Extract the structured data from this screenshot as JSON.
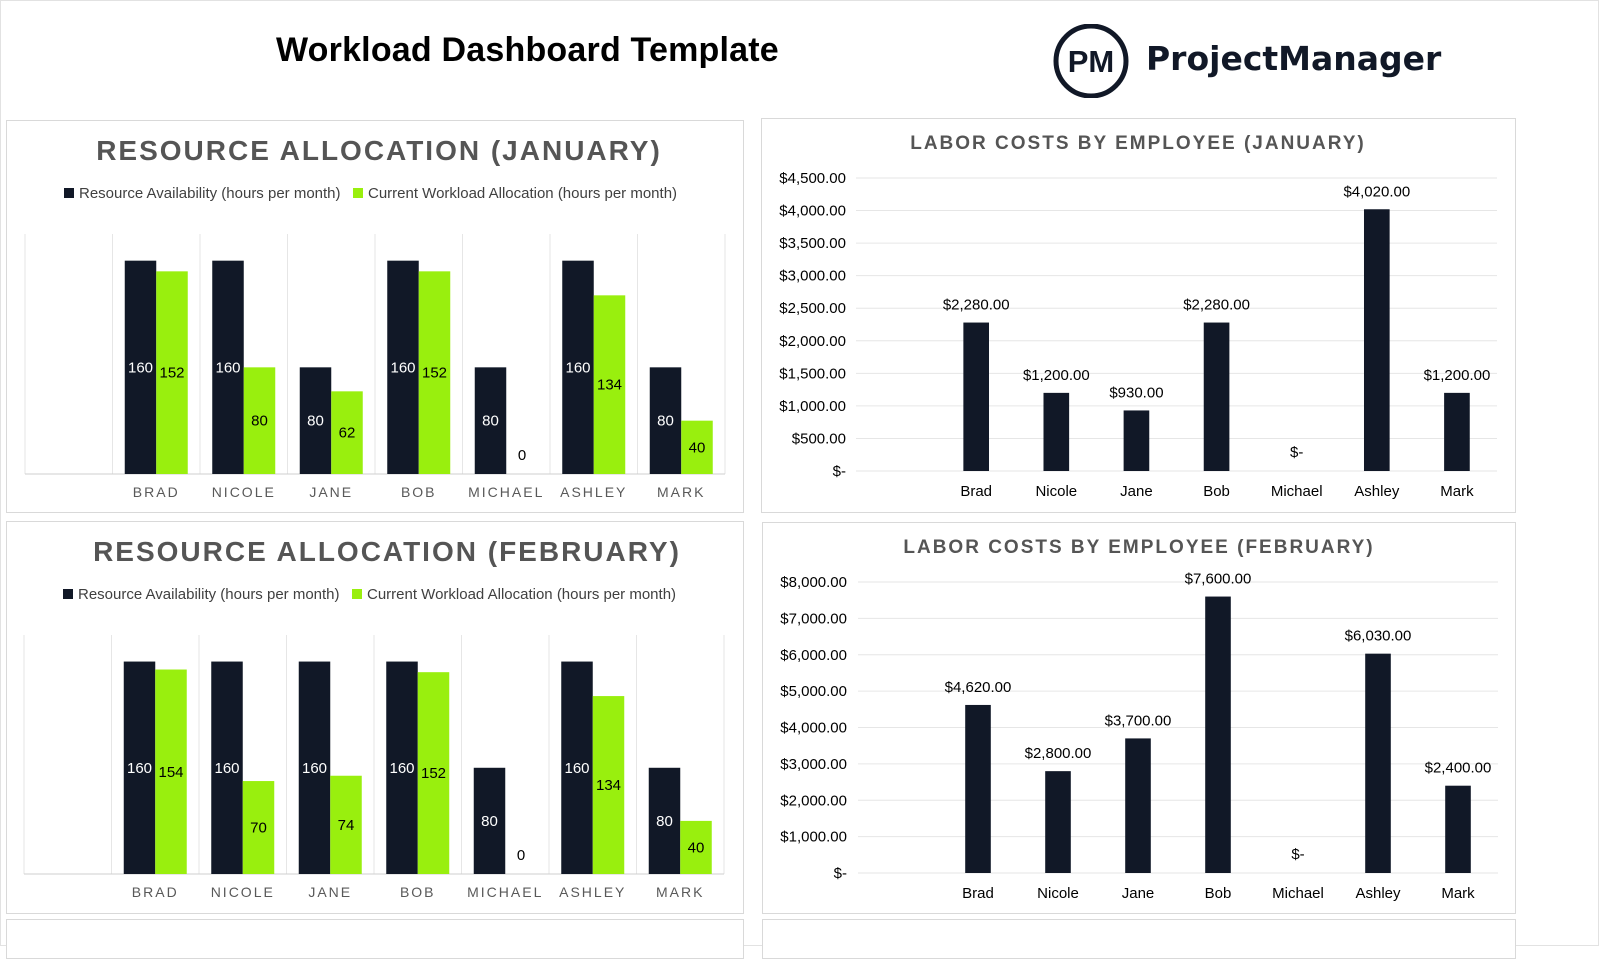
{
  "page": {
    "title": "Workload Dashboard Template",
    "brand": {
      "monogram": "PM",
      "name": "ProjectManager"
    }
  },
  "colors": {
    "availability": "#111827",
    "workload": "#99ef0e",
    "labor_bar": "#111827",
    "axis": "#cfcfcf",
    "grid": "#e6e6e6",
    "title_gray": "#555555"
  },
  "chart_data": [
    {
      "id": "alloc-jan",
      "type": "bar",
      "title": "RESOURCE ALLOCATION (JANUARY)",
      "categories": [
        "BRAD",
        "NICOLE",
        "JANE",
        "BOB",
        "MICHAEL",
        "ASHLEY",
        "MARK"
      ],
      "series": [
        {
          "name": "Resource Availability (hours per month)",
          "values": [
            160,
            160,
            80,
            160,
            80,
            160,
            80
          ]
        },
        {
          "name": "Current Workload Allocation (hours per month)",
          "values": [
            152,
            80,
            62,
            152,
            0,
            134,
            40
          ]
        }
      ],
      "ylim": [
        0,
        180
      ],
      "legend": "top",
      "grid": false,
      "data_labels": true
    },
    {
      "id": "alloc-feb",
      "type": "bar",
      "title": "RESOURCE ALLOCATION (FEBRUARY)",
      "categories": [
        "BRAD",
        "NICOLE",
        "JANE",
        "BOB",
        "MICHAEL",
        "ASHLEY",
        "MARK"
      ],
      "series": [
        {
          "name": "Resource Availability (hours per month)",
          "values": [
            160,
            160,
            160,
            160,
            80,
            160,
            80
          ]
        },
        {
          "name": "Current Workload Allocation (hours per month)",
          "values": [
            154,
            70,
            74,
            152,
            0,
            134,
            40
          ]
        }
      ],
      "ylim": [
        0,
        180
      ],
      "legend": "top",
      "grid": false,
      "data_labels": true
    },
    {
      "id": "labor-jan",
      "type": "bar",
      "title": "LABOR COSTS BY EMPLOYEE (JANUARY)",
      "categories": [
        "Brad",
        "Nicole",
        "Jane",
        "Bob",
        "Michael",
        "Ashley",
        "Mark"
      ],
      "values": [
        2280,
        1200,
        930,
        2280,
        0,
        4020,
        1200
      ],
      "value_labels": [
        "$2,280.00",
        "$1,200.00",
        "$930.00",
        "$2,280.00",
        "$-",
        "$4,020.00",
        "$1,200.00"
      ],
      "ylim": [
        0,
        4500
      ],
      "yticks": [
        0,
        500,
        1000,
        1500,
        2000,
        2500,
        3000,
        3500,
        4000,
        4500
      ],
      "ytick_labels": [
        "$-",
        "$500.00",
        "$1,000.00",
        "$1,500.00",
        "$2,000.00",
        "$2,500.00",
        "$3,000.00",
        "$3,500.00",
        "$4,000.00",
        "$4,500.00"
      ],
      "grid": true,
      "legend": "none"
    },
    {
      "id": "labor-feb",
      "type": "bar",
      "title": "LABOR COSTS BY EMPLOYEE (FEBRUARY)",
      "categories": [
        "Brad",
        "Nicole",
        "Jane",
        "Bob",
        "Michael",
        "Ashley",
        "Mark"
      ],
      "values": [
        4620,
        2800,
        3700,
        7600,
        0,
        6030,
        2400
      ],
      "value_labels": [
        "$4,620.00",
        "$2,800.00",
        "$3,700.00",
        "$7,600.00",
        "$-",
        "$6,030.00",
        "$2,400.00"
      ],
      "ylim": [
        0,
        8000
      ],
      "yticks": [
        0,
        1000,
        2000,
        3000,
        4000,
        5000,
        6000,
        7000,
        8000
      ],
      "ytick_labels": [
        "$-",
        "$1,000.00",
        "$2,000.00",
        "$3,000.00",
        "$4,000.00",
        "$5,000.00",
        "$6,000.00",
        "$7,000.00",
        "$8,000.00"
      ],
      "grid": true,
      "legend": "none"
    }
  ]
}
